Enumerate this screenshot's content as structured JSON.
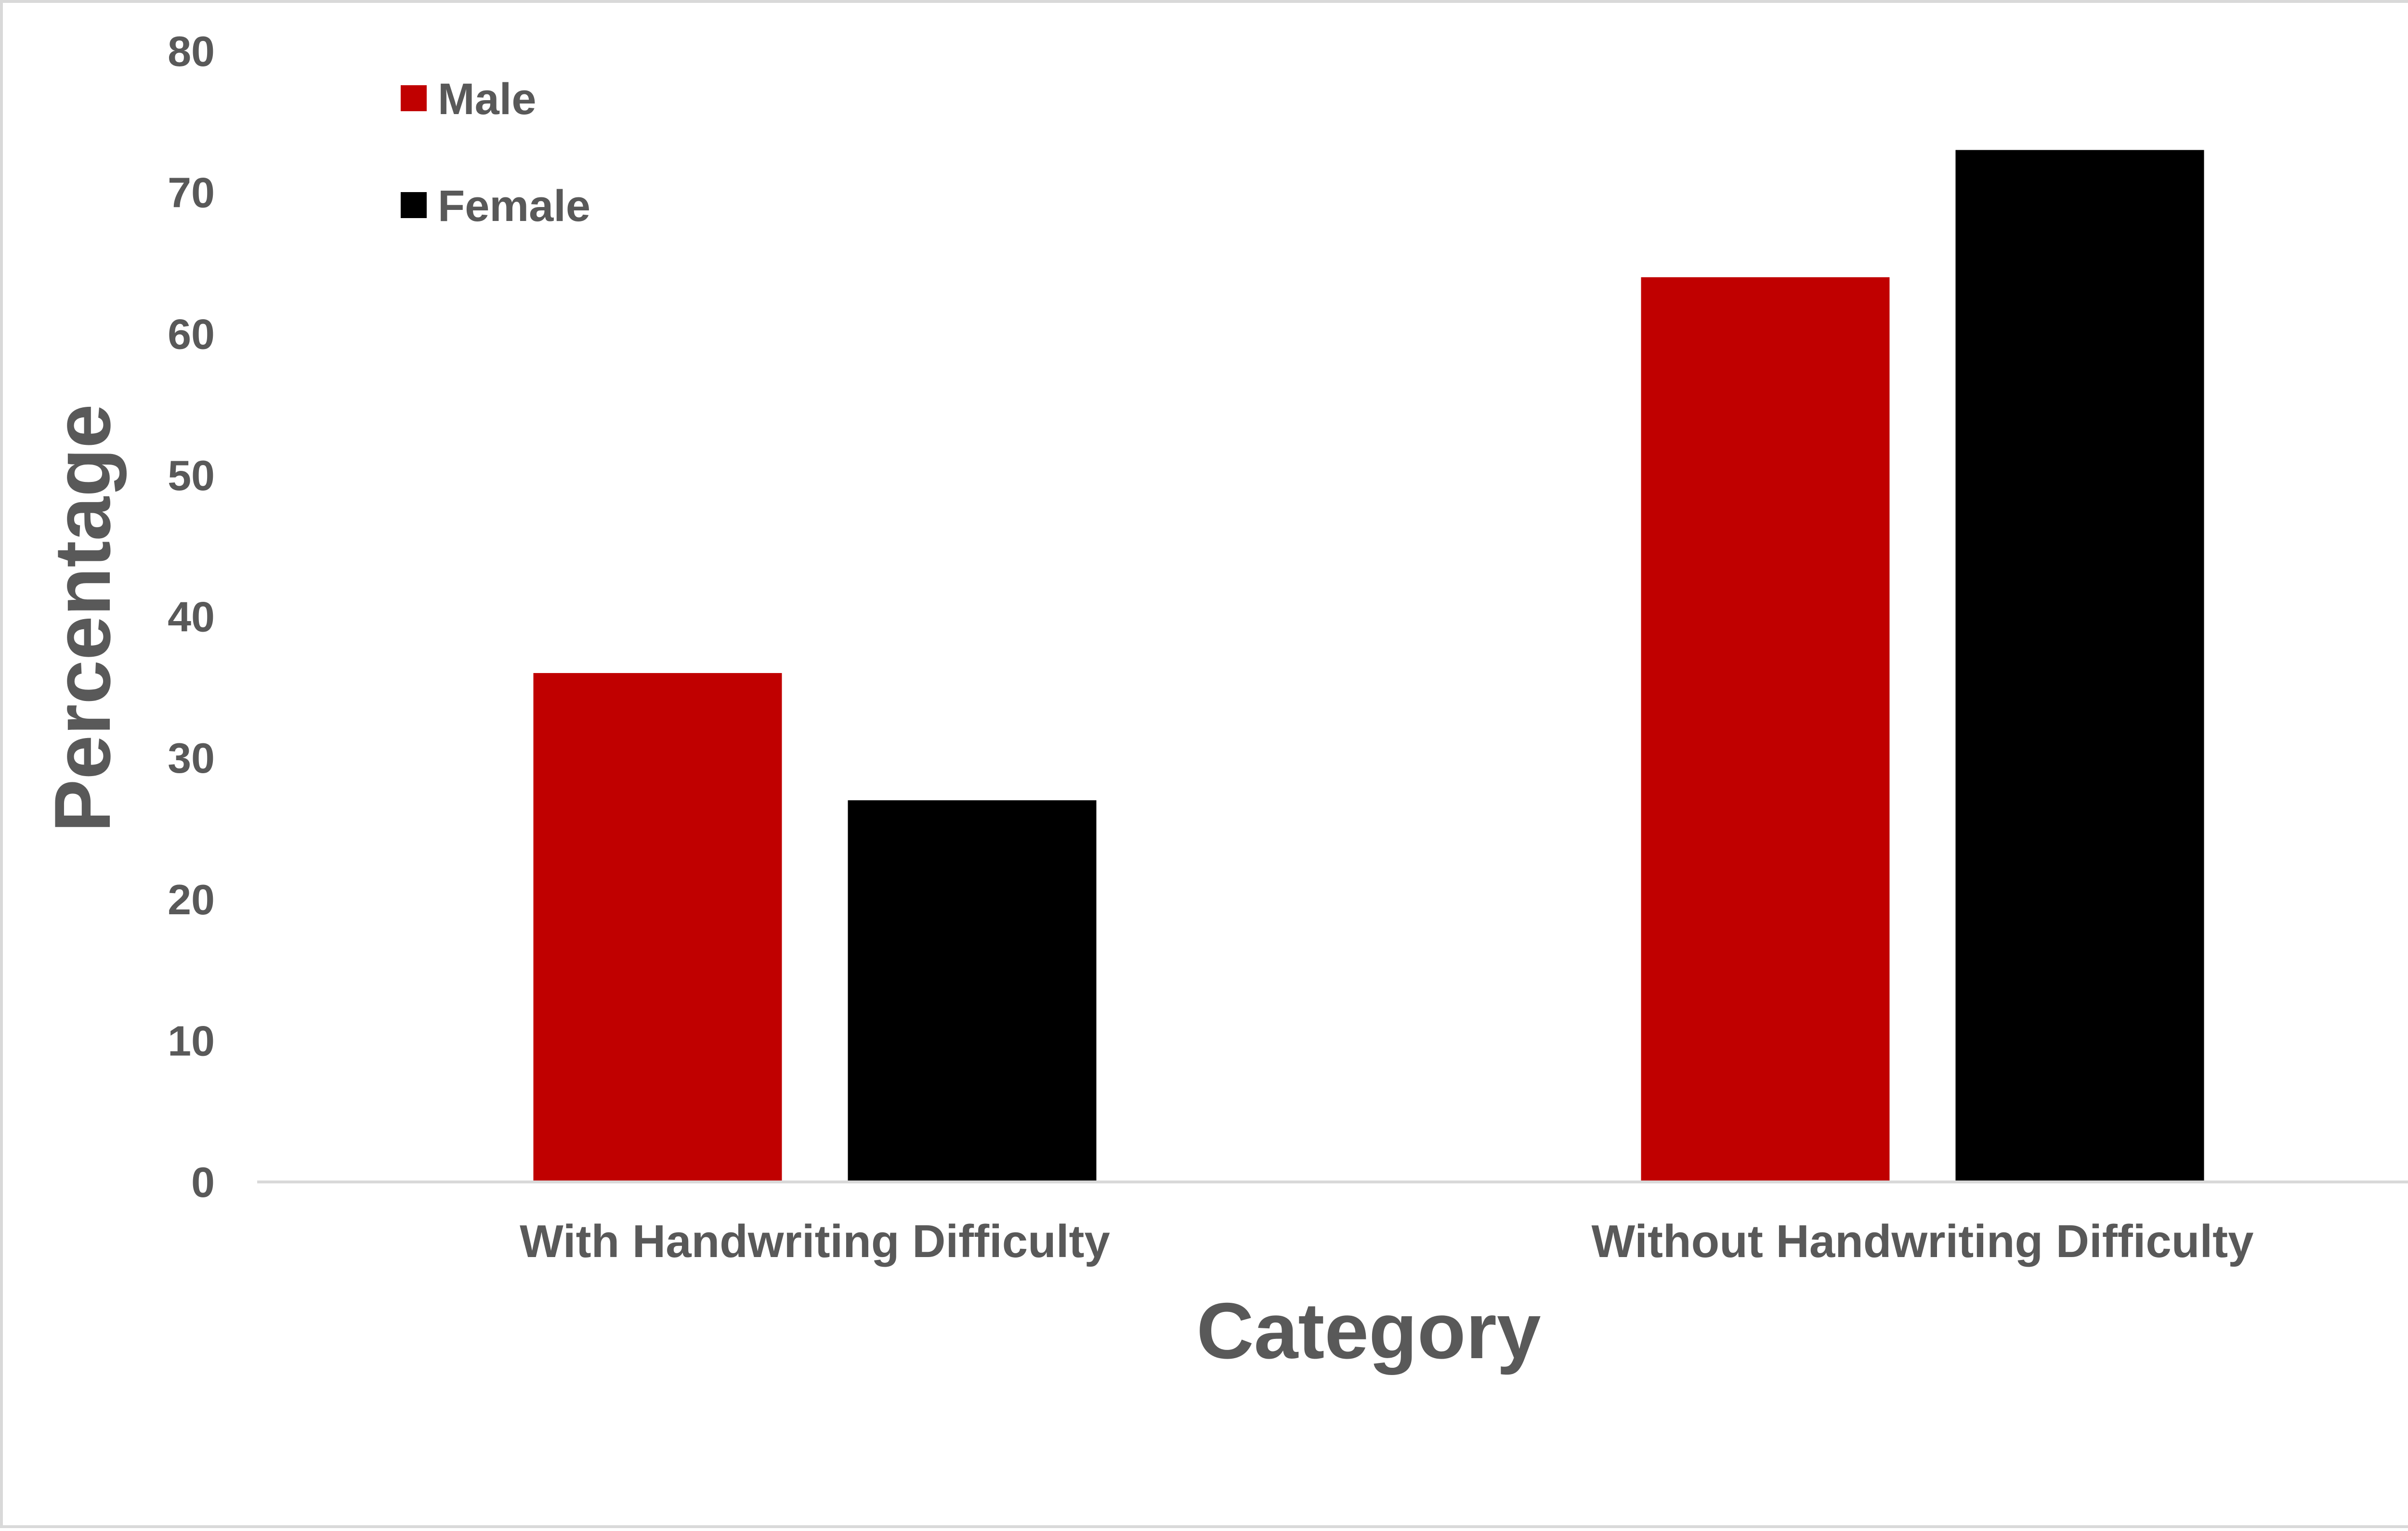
{
  "chart_data": {
    "type": "bar",
    "title": "",
    "xlabel": "Category",
    "ylabel": "Percentage",
    "categories": [
      "With Handwriting Difficulty",
      "Without Handwriting Difficulty"
    ],
    "series": [
      {
        "name": "Male",
        "color": "#c00000",
        "values": [
          36,
          64
        ]
      },
      {
        "name": "Female",
        "color": "#000000",
        "values": [
          27,
          73
        ]
      }
    ],
    "ylim": [
      0,
      80
    ],
    "yticks": [
      "0",
      "10",
      "20",
      "30",
      "40",
      "50",
      "60",
      "70",
      "80"
    ],
    "grid": false,
    "legend": "top-left"
  }
}
